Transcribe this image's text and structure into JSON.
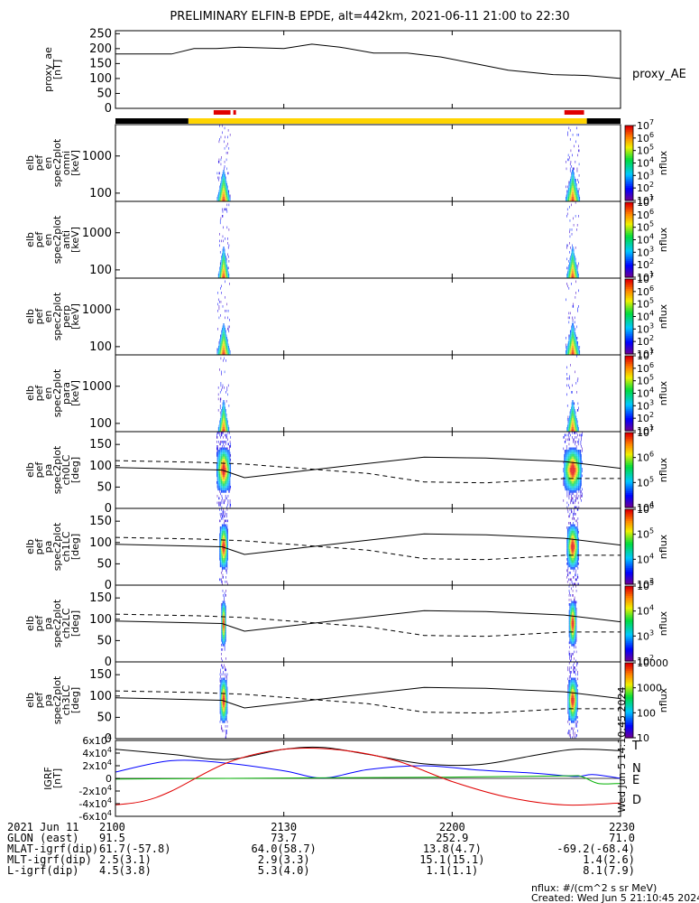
{
  "title": "PRELIMINARY ELFIN-B EPDE, alt=442km, 2021-06-11 21:00 to 22:30",
  "colors": {
    "bar_black": "#000000",
    "bar_yellow": "#ffd400",
    "bar_red": "#e00000",
    "bx": "#000000",
    "by": "#0000ff",
    "bz": "#00b000",
    "bd": "#e00000"
  },
  "chart_data": [
    {
      "type": "line",
      "name": "proxy_ae",
      "ylabel": "proxy_ae [nT]",
      "ylabel_lines": [
        "proxy_ae",
        "[nT]"
      ],
      "legend": "proxy_AE",
      "ylim": [
        0,
        260
      ],
      "yticks": [
        "0",
        "50",
        "100",
        "150",
        "200",
        "250"
      ],
      "x": [
        0,
        10,
        14,
        18,
        22,
        30,
        35,
        40,
        46,
        52,
        58,
        64,
        70,
        78,
        84,
        90
      ],
      "y": [
        182,
        182,
        200,
        200,
        205,
        200,
        215,
        205,
        185,
        185,
        172,
        150,
        128,
        113,
        110,
        100
      ]
    },
    {
      "type": "bar",
      "name": "science-zone-bar",
      "segments": [
        {
          "start": 0,
          "end": 13,
          "color": "black"
        },
        {
          "start": 13,
          "end": 84,
          "color": "yellow"
        },
        {
          "start": 84,
          "end": 90,
          "color": "black"
        }
      ],
      "highlights": [
        {
          "start": 17.5,
          "end": 20.5,
          "color": "red"
        },
        {
          "start": 21,
          "end": 21.4,
          "color": "red"
        },
        {
          "start": 80,
          "end": 83.5,
          "color": "red"
        }
      ]
    },
    {
      "type": "heatmap",
      "name": "energy-omni",
      "ylabel_lines": [
        "elb",
        "pef",
        "en",
        "spec2plot",
        "omni",
        "[keV]"
      ],
      "yscale": "log",
      "ylim": [
        60,
        7000
      ],
      "yticks": [
        "100",
        "1000"
      ],
      "cbar_label": "nflux",
      "cbar_ticks": [
        "10^1",
        "10^2",
        "10^3",
        "10^4",
        "10^5",
        "10^6",
        "10^7"
      ],
      "events": [
        {
          "center": 19.3,
          "width": 2.4,
          "peak_energy": 140
        },
        {
          "center": 81.5,
          "width": 2.6,
          "peak_energy": 160
        }
      ]
    },
    {
      "type": "heatmap",
      "name": "energy-anti",
      "ylabel_lines": [
        "elb",
        "pef",
        "en",
        "spec2plot",
        "anti",
        "[keV]"
      ],
      "yscale": "log",
      "ylim": [
        60,
        7000
      ],
      "yticks": [
        "100",
        "1000"
      ],
      "cbar_label": "nflux",
      "cbar_ticks": [
        "10^1",
        "10^2",
        "10^3",
        "10^4",
        "10^5",
        "10^6",
        "10^7"
      ],
      "events": [
        {
          "center": 19.3,
          "width": 2.0,
          "peak_energy": 100
        },
        {
          "center": 81.5,
          "width": 2.2,
          "peak_energy": 110
        }
      ]
    },
    {
      "type": "heatmap",
      "name": "energy-perp",
      "ylabel_lines": [
        "elb",
        "pef",
        "en",
        "spec2plot",
        "perp",
        "[keV]"
      ],
      "yscale": "log",
      "ylim": [
        60,
        7000
      ],
      "yticks": [
        "100",
        "1000"
      ],
      "cbar_label": "nflux",
      "cbar_ticks": [
        "10^1",
        "10^2",
        "10^3",
        "10^4",
        "10^5",
        "10^6",
        "10^7"
      ],
      "events": [
        {
          "center": 19.3,
          "width": 2.4,
          "peak_energy": 140
        },
        {
          "center": 81.5,
          "width": 2.6,
          "peak_energy": 160
        }
      ]
    },
    {
      "type": "heatmap",
      "name": "energy-para",
      "ylabel_lines": [
        "elb",
        "pef",
        "en",
        "spec2plot",
        "para",
        "[keV]"
      ],
      "yscale": "log",
      "ylim": [
        60,
        7000
      ],
      "yticks": [
        "100",
        "1000"
      ],
      "cbar_label": "nflux",
      "cbar_ticks": [
        "10^1",
        "10^2",
        "10^3",
        "10^4",
        "10^5",
        "10^6",
        "10^7"
      ],
      "events": [
        {
          "center": 19.3,
          "width": 2.0,
          "peak_energy": 110
        },
        {
          "center": 81.5,
          "width": 2.2,
          "peak_energy": 120
        }
      ]
    },
    {
      "type": "heatmap",
      "name": "pa-ch0",
      "ylabel_lines": [
        "elb",
        "pef",
        "pa",
        "spec2plot",
        "ch0LC",
        "[deg]"
      ],
      "ylim": [
        0,
        180
      ],
      "yticks": [
        "0",
        "50",
        "100",
        "150"
      ],
      "cbar_label": "nflux",
      "cbar_ticks": [
        "10^4",
        "10^5",
        "10^6",
        "10^7"
      ],
      "events": [
        {
          "center": 19.3,
          "width": 2.6
        },
        {
          "center": 81.5,
          "width": 3.4
        }
      ]
    },
    {
      "type": "heatmap",
      "name": "pa-ch1",
      "ylabel_lines": [
        "elb",
        "pef",
        "pa",
        "spec2plot",
        "ch1LC",
        "[deg]"
      ],
      "ylim": [
        0,
        180
      ],
      "yticks": [
        "0",
        "50",
        "100",
        "150"
      ],
      "cbar_label": "nflux",
      "cbar_ticks": [
        "10^3",
        "10^4",
        "10^5",
        "10^6"
      ],
      "events": [
        {
          "center": 19.3,
          "width": 1.6
        },
        {
          "center": 81.5,
          "width": 2.2
        }
      ]
    },
    {
      "type": "heatmap",
      "name": "pa-ch2",
      "ylabel_lines": [
        "elb",
        "pef",
        "pa",
        "spec2plot",
        "ch2LC",
        "[deg]"
      ],
      "ylim": [
        0,
        180
      ],
      "yticks": [
        "0",
        "50",
        "100",
        "150"
      ],
      "cbar_label": "nflux",
      "cbar_ticks": [
        "10^2",
        "10^3",
        "10^4",
        "10^5"
      ],
      "events": [
        {
          "center": 19.3,
          "width": 0.9
        },
        {
          "center": 81.5,
          "width": 1.4
        }
      ]
    },
    {
      "type": "heatmap",
      "name": "pa-ch3",
      "ylabel_lines": [
        "elb",
        "pef",
        "pa",
        "spec2plot",
        "ch3LC",
        "[deg]"
      ],
      "ylim": [
        0,
        180
      ],
      "yticks": [
        "0",
        "50",
        "100",
        "150"
      ],
      "cbar_label": "nflux",
      "cbar_ticks": [
        "10",
        "100",
        "1000",
        "10000"
      ],
      "events": [
        {
          "center": 19.3,
          "width": 1.4
        },
        {
          "center": 81.5,
          "width": 1.8
        }
      ]
    },
    {
      "type": "line",
      "name": "igrf",
      "ylabel_lines": [
        "IGRF",
        "[nT]"
      ],
      "ylim": [
        -60000,
        60000
      ],
      "yticks": [
        "-6x10^4",
        "-4x10^4",
        "-2x10^4",
        "0",
        "2x10^4",
        "4x10^4",
        "6x10^4"
      ],
      "series": [
        {
          "name": "T",
          "color": "black",
          "x": [
            0,
            10,
            20,
            30,
            37,
            45,
            55,
            65,
            75,
            82,
            90
          ],
          "y": [
            46000,
            38000,
            30000,
            46000,
            49000,
            38000,
            23000,
            22000,
            37000,
            46000,
            44000
          ]
        },
        {
          "name": "N",
          "color": "blue",
          "x": [
            0,
            10,
            20,
            30,
            37,
            45,
            55,
            65,
            75,
            82,
            85,
            90
          ],
          "y": [
            10000,
            28000,
            24000,
            12000,
            500,
            14000,
            20000,
            13000,
            8000,
            3000,
            6000,
            200
          ]
        },
        {
          "name": "E",
          "color": "green",
          "x": [
            0,
            20,
            40,
            60,
            80,
            83,
            86,
            90
          ],
          "y": [
            -1000,
            0,
            1000,
            2000,
            4000,
            3000,
            -8000,
            -8000
          ]
        },
        {
          "name": "D",
          "color": "red",
          "x": [
            0,
            5,
            10,
            20,
            30,
            40,
            50,
            60,
            70,
            80,
            90
          ],
          "y": [
            -42000,
            -36000,
            -20000,
            25000,
            46000,
            45000,
            28000,
            -5000,
            -30000,
            -42000,
            -39000
          ]
        }
      ]
    }
  ],
  "axis": {
    "xticks": [
      "2100",
      "2130",
      "2200",
      "2230"
    ],
    "rows": [
      {
        "label": "2021 Jun 11",
        "v": [
          "2100",
          "2130",
          "2200",
          "2230"
        ]
      },
      {
        "label": "GLON (east)",
        "v": [
          "91.5",
          "73.7",
          "252.9",
          "71.0"
        ]
      },
      {
        "label": "MLAT-igrf(dip)",
        "v": [
          "61.7(-57.8)",
          "64.0(58.7)",
          "13.8(4.7)",
          "-69.2(-68.4)"
        ]
      },
      {
        "label": "MLT-igrf(dip)",
        "v": [
          "2.5(3.1)",
          "2.9(3.3)",
          "15.1(15.1)",
          "1.4(2.6)"
        ]
      },
      {
        "label": "L-igrf(dip)",
        "v": [
          "4.5(3.8)",
          "5.3(4.0)",
          "1.1(1.1)",
          "8.1(7.9)"
        ]
      }
    ]
  },
  "footer": {
    "units": "nflux: #/(cm^2 s sr MeV)",
    "created": "Created: Wed Jun  5 21:10:45 2024",
    "side_stamp": "Wed Jun  5 14:10:45 2024"
  }
}
